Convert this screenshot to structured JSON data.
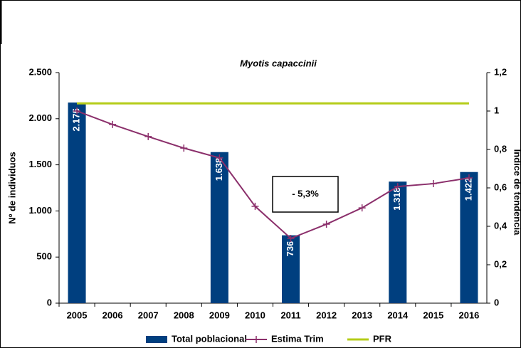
{
  "chart_data": {
    "type": "bar",
    "title": "Myotis capaccinii",
    "y_label": "Nº de individuos",
    "y2_label": "Índice de tendencia",
    "annotation": "- 5,3%",
    "categories": [
      "2005",
      "2006",
      "2007",
      "2008",
      "2009",
      "2010",
      "2011",
      "2012",
      "2013",
      "2014",
      "2015",
      "2016"
    ],
    "ylim": [
      0,
      2500
    ],
    "yticks": [
      0,
      500,
      {
        "value": 1000,
        "label": "1.000"
      },
      {
        "value": 1500,
        "label": "1.500"
      },
      {
        "value": 2000,
        "label": "2.000"
      },
      {
        "value": 2500,
        "label": "2.500"
      }
    ],
    "y2lim": [
      0,
      1.2
    ],
    "y2ticks": [
      0,
      {
        "value": 0.2,
        "label": "0,2"
      },
      {
        "value": 0.4,
        "label": "0,4"
      },
      {
        "value": 0.6,
        "label": "0,6"
      },
      {
        "value": 0.8,
        "label": "0,8"
      },
      1,
      {
        "value": 1.2,
        "label": "1,2"
      }
    ],
    "legend": "bottom",
    "series": [
      {
        "name": "Total poblacional",
        "type": "bar",
        "color": "#003f7f",
        "values": [
          2175,
          null,
          null,
          null,
          1638,
          null,
          736,
          null,
          null,
          1318,
          null,
          1422
        ],
        "value_labels": [
          "2.175",
          null,
          null,
          null,
          "1.638",
          null,
          "736",
          null,
          null,
          "1.318",
          null,
          "1.422"
        ]
      },
      {
        "name": "Estima Trim",
        "type": "line",
        "axis": "y2",
        "color": "#8b2f6b",
        "marker": "plus",
        "values": [
          1.0,
          0.93,
          0.867,
          0.807,
          0.756,
          0.504,
          0.337,
          0.411,
          0.496,
          0.607,
          0.622,
          0.652
        ]
      },
      {
        "name": "PFR",
        "type": "line",
        "axis": "y2",
        "color": "#b5cc18",
        "values": [
          1.04,
          1.04,
          1.04,
          1.04,
          1.04,
          1.04,
          1.04,
          1.04,
          1.04,
          1.04,
          1.04,
          1.04
        ]
      }
    ]
  }
}
